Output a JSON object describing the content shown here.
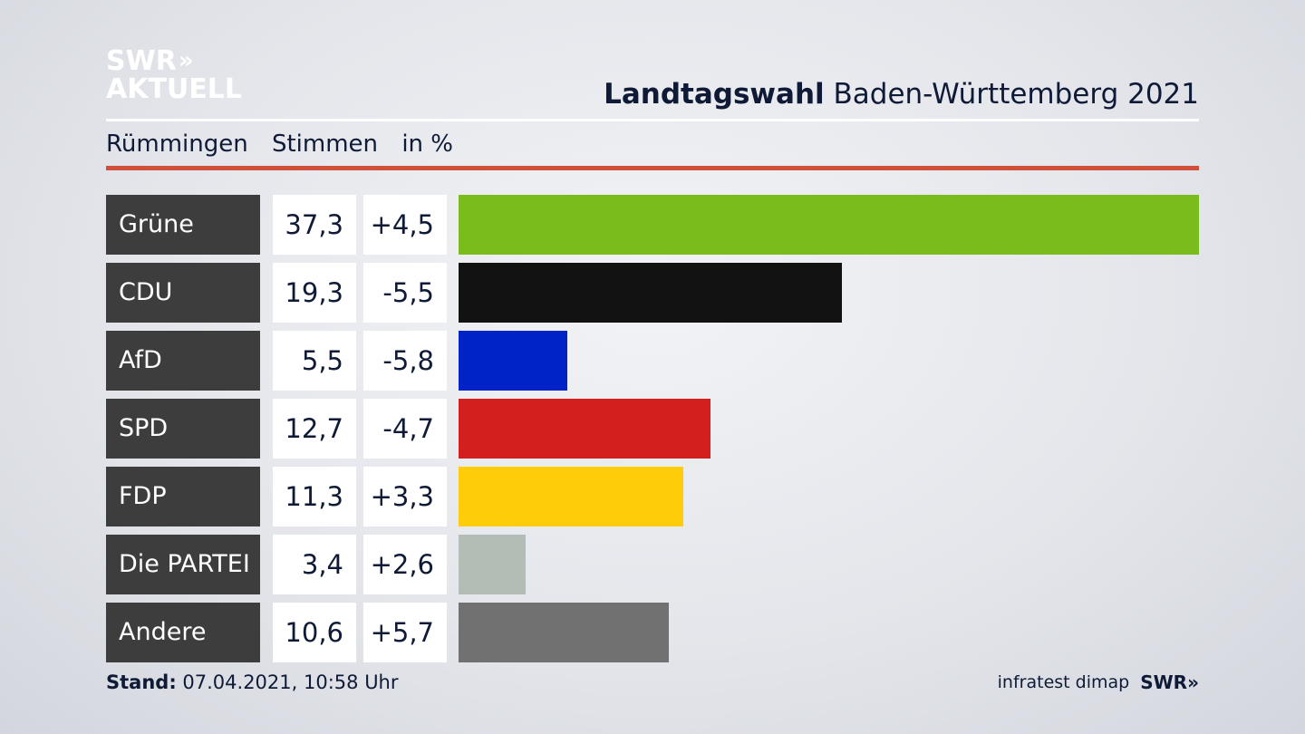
{
  "logo": {
    "line1": "SWR",
    "chevrons": "»",
    "line2": "AKTUELL"
  },
  "title": {
    "bold": "Landtagswahl",
    "rest": "Baden-Württemberg 2021"
  },
  "subheader": {
    "place": "Rümmingen",
    "measure": "Stimmen",
    "unit": "in %"
  },
  "footer": {
    "stand_label": "Stand:",
    "stand_value": "07.04.2021, 10:58 Uhr",
    "source": "infratest dimap",
    "brand": "SWR",
    "brand_chevrons": "»"
  },
  "chart_data": {
    "type": "bar",
    "orientation": "horizontal",
    "xlim": [
      0,
      37.3
    ],
    "categories": [
      "Grüne",
      "CDU",
      "AfD",
      "SPD",
      "FDP",
      "Die PARTEI",
      "Andere"
    ],
    "values": [
      37.3,
      19.3,
      5.5,
      12.7,
      11.3,
      3.4,
      10.6
    ],
    "value_labels": [
      "37,3",
      "19,3",
      "5,5",
      "12,7",
      "11,3",
      "3,4",
      "10,6"
    ],
    "diff_labels": [
      "+4,5",
      "-5,5",
      "-5,8",
      "-4,7",
      "+3,3",
      "+2,6",
      "+5,7"
    ],
    "colors": [
      "#79bc1b",
      "#121212",
      "#0023c8",
      "#d41f1f",
      "#ffcc0a",
      "#b3bcb5",
      "#717171"
    ]
  }
}
